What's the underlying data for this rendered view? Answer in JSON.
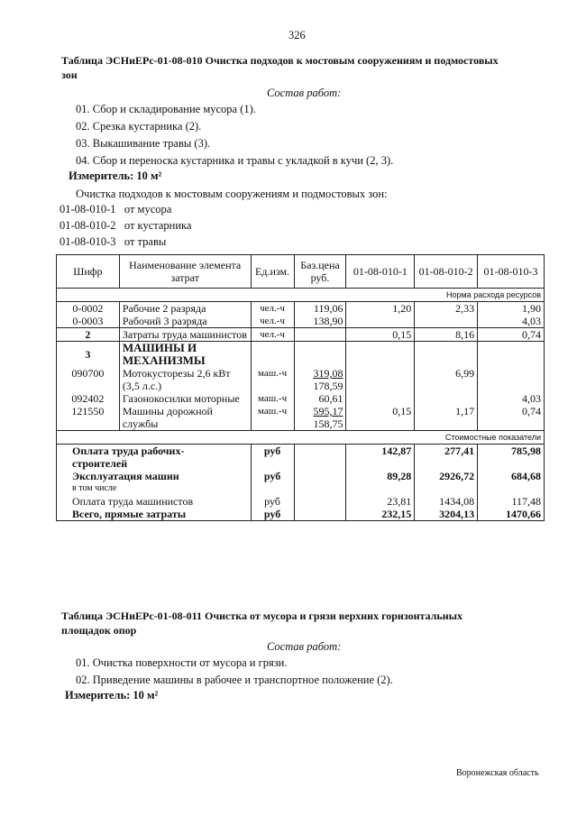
{
  "page_number": "326",
  "table1": {
    "title_line1": "Таблица  ЭСНиЕРс-01-08-010  Очистка подходов к мостовым сооружениям и подмостовых",
    "title_line2": "зон",
    "works_heading": "Состав работ:",
    "works": [
      "01. Сбор и складирование мусора (1).",
      "02. Срезка кустарника (2).",
      "03. Выкашивание травы (3).",
      "04. Сбор и переноска кустарника и травы с укладкой в кучи (2, 3)."
    ],
    "meter": "Измеритель: 10 м²",
    "intro": "Очистка подходов к мостовым сооружениям и подмостовых зон:",
    "variants": [
      {
        "code": "01-08-010-1",
        "label": "от мусора"
      },
      {
        "code": "01-08-010-2",
        "label": "от кустарника"
      },
      {
        "code": "01-08-010-3",
        "label": "от травы"
      }
    ],
    "headers": [
      "Шифр",
      "Наименование элемента затрат",
      "Ед.изм.",
      "Баз.цена руб.",
      "01-08-010-1",
      "01-08-010-2",
      "01-08-010-3"
    ],
    "norm_label": "Норма расхода ресурсов",
    "rows": [
      {
        "code": "0-0002",
        "name": "Рабочие 2 разряда",
        "unit": "чел.-ч",
        "price": "119,06",
        "v1": "1,20",
        "v2": "2,33",
        "v3": "1,90"
      },
      {
        "code": "0-0003",
        "name": "Рабочий 3 разряда",
        "unit": "чел.-ч",
        "price": "138,90",
        "v1": "",
        "v2": "",
        "v3": "4,03"
      },
      {
        "code": "2",
        "name": "Затраты труда машинистов",
        "unit": "чел.-ч",
        "price": "",
        "v1": "0,15",
        "v2": "8,16",
        "v3": "0,74"
      },
      {
        "code": "3",
        "name": "МАШИНЫ И МЕХАНИЗМЫ"
      },
      {
        "code": "090700",
        "name": "Мотокусторезы 2,6 кВт (3,5 л.с.)",
        "unit": "маш.-ч",
        "price": "319,08",
        "price2": "178,59",
        "v1": "",
        "v2": "6,99",
        "v3": ""
      },
      {
        "code": "092402",
        "name": "Газонокосилки моторные",
        "unit": "маш.-ч",
        "price": "60,61",
        "v1": "",
        "v2": "",
        "v3": "4,03"
      },
      {
        "code": "121550",
        "name": "Машины дорожной службы",
        "unit": "маш.-ч",
        "price": "595,17",
        "price2": "158,75",
        "v1": "0,15",
        "v2": "1,17",
        "v3": "0,74"
      }
    ],
    "cost_label": "Стоимостные показатели",
    "costs": [
      {
        "name": "Оплата труда рабочих-строителей",
        "unit": "руб",
        "v1": "142,87",
        "v2": "277,41",
        "v3": "785,98"
      },
      {
        "name": "Эксплуатация машин",
        "unit": "руб",
        "v1": "89,28",
        "v2": "2926,72",
        "v3": "684,68"
      },
      {
        "name": "в том числе"
      },
      {
        "name": "Оплата труда машинистов",
        "unit": "руб",
        "v1": "23,81",
        "v2": "1434,08",
        "v3": "117,48"
      },
      {
        "name": "Всего, прямые затраты",
        "unit": "руб",
        "v1": "232,15",
        "v2": "3204,13",
        "v3": "1470,66"
      }
    ]
  },
  "table2": {
    "title_line1": "Таблица  ЭСНиЕРс-01-08-011  Очистка от мусора и грязи верхних горизонтальных",
    "title_line2": "площадок опор",
    "works_heading": "Состав работ:",
    "works": [
      "01. Очистка поверхности от мусора и грязи.",
      "02. Приведение машины в рабочее и транспортное положение (2)."
    ],
    "meter": "Измеритель: 10 м²"
  },
  "footer": "Воронежская область"
}
